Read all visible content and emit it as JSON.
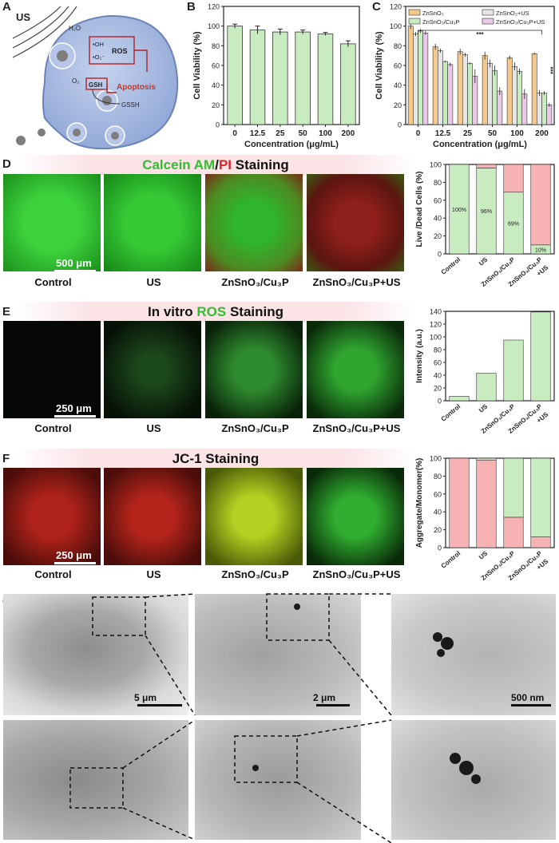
{
  "panel_letters": {
    "a": "A",
    "b": "B",
    "c": "C",
    "d": "D",
    "e": "E",
    "f": "F",
    "g": "G"
  },
  "schematic": {
    "us": "US",
    "h2o": "H₂O",
    "oh": "•OH",
    "o2rad": "•O₂⁻",
    "ros": "ROS",
    "o2": "O₂",
    "gsh": "GSH",
    "apoptosis": "Apoptosis",
    "gssh": "GSSH",
    "colors": {
      "cell": "#9eb3dc",
      "apoptosis": "#c0392b"
    }
  },
  "banners": {
    "d": {
      "p1": "Calcein AM",
      "p2": "/",
      "p3": "PI",
      "p4": " Staining"
    },
    "e": {
      "p1": "In vitro ",
      "p2": "ROS",
      "p3": " Staining"
    },
    "f": {
      "p1": "JC-1 Staining"
    }
  },
  "micro_labels": {
    "control": "Control",
    "us": "US",
    "zc": "ZnSnO₃/Cu₃P",
    "zcus": "ZnSnO₃/Cu₃P+US"
  },
  "scalebars": {
    "d": "500 μm",
    "e": "250 μm",
    "f": "250 μm",
    "g1": "5 μm",
    "g2": "2 μm",
    "g3": "500 nm"
  },
  "chart_data": [
    {
      "id": "B",
      "type": "bar",
      "categories": [
        "0",
        "12.5",
        "25",
        "50",
        "100",
        "200"
      ],
      "values": [
        100,
        96,
        94,
        94,
        92,
        82
      ],
      "errors": [
        2,
        4,
        3,
        2,
        1.5,
        3
      ],
      "ylabel": "Cell Viability (%)",
      "xlabel": "Concentration (μg/mL)",
      "ylim": [
        0,
        120
      ],
      "yticks": [
        0,
        20,
        40,
        60,
        80,
        100,
        120
      ],
      "color": "#c8ebc0"
    },
    {
      "id": "C",
      "type": "bar",
      "categories": [
        "0",
        "12.5",
        "25",
        "50",
        "100",
        "200"
      ],
      "series": [
        {
          "name": "ZnSnO₃",
          "color": "#f5c98b",
          "values": [
            100,
            79,
            74,
            70,
            68,
            72
          ],
          "errors": [
            3,
            3,
            3,
            4,
            2,
            1
          ]
        },
        {
          "name": "ZnSnO₃+US",
          "color": "#e6e6e6",
          "values": [
            92,
            75,
            71,
            62,
            59,
            32
          ],
          "errors": [
            2,
            2,
            2,
            4,
            4,
            3
          ]
        },
        {
          "name": "ZnSnO₃/Cu₃P",
          "color": "#c8ebc0",
          "values": [
            95,
            64,
            62,
            55,
            54,
            32
          ],
          "errors": [
            2,
            1,
            1,
            5,
            3,
            2
          ]
        },
        {
          "name": "ZnSnO₃/Cu₃P+US",
          "color": "#e9c8e8",
          "values": [
            93,
            61,
            49,
            34,
            31,
            20
          ],
          "errors": [
            2,
            2,
            7,
            4,
            5,
            2
          ]
        }
      ],
      "ylabel": "Cell Viability (%)",
      "xlabel": "Concentration (μg/mL)",
      "ylim": [
        0,
        120
      ],
      "yticks": [
        0,
        20,
        40,
        60,
        80,
        100,
        120
      ],
      "annotations": [
        "***",
        "***"
      ],
      "legend_placement": "top"
    },
    {
      "id": "D",
      "type": "bar",
      "stacked": true,
      "categories": [
        "Control",
        "US",
        "ZnSnO₃/Cu₃P",
        "ZnSnO₃/Cu₃P +US"
      ],
      "series": [
        {
          "name": "Live",
          "color": "#c8ebc0",
          "values": [
            100,
            96,
            69,
            10
          ]
        },
        {
          "name": "Dead",
          "color": "#f7b3b3",
          "values": [
            0,
            4,
            31,
            90
          ]
        }
      ],
      "data_labels": [
        "100%",
        "96%",
        "69%",
        "10%"
      ],
      "ylabel": "Live /Dead Cells (%)",
      "ylim": [
        0,
        100
      ],
      "yticks": [
        0,
        20,
        40,
        60,
        80,
        100
      ]
    },
    {
      "id": "E",
      "type": "bar",
      "categories": [
        "Control",
        "US",
        "ZnSnO₃/Cu₃P",
        "ZnSnO₃/Cu₃P +US"
      ],
      "values": [
        7,
        43,
        95,
        139
      ],
      "ylabel": "Intensity (a.u.)",
      "ylim": [
        0,
        140
      ],
      "yticks": [
        0,
        20,
        40,
        60,
        80,
        100,
        120,
        140
      ],
      "color": "#c8ebc0"
    },
    {
      "id": "F",
      "type": "bar",
      "stacked": true,
      "categories": [
        "Control",
        "US",
        "ZnSnO₃/Cu₃P",
        "ZnSnO₃/Cu₃P +US"
      ],
      "series": [
        {
          "name": "Aggregate",
          "color": "#f7b3b3",
          "values": [
            100,
            98,
            34,
            12
          ]
        },
        {
          "name": "Monomer",
          "color": "#c8ebc0",
          "values": [
            0,
            2,
            66,
            88
          ]
        }
      ],
      "ylabel": "Aggregate/Monomer(%)",
      "ylim": [
        0,
        100
      ],
      "yticks": [
        0,
        20,
        40,
        60,
        80,
        100
      ]
    }
  ]
}
